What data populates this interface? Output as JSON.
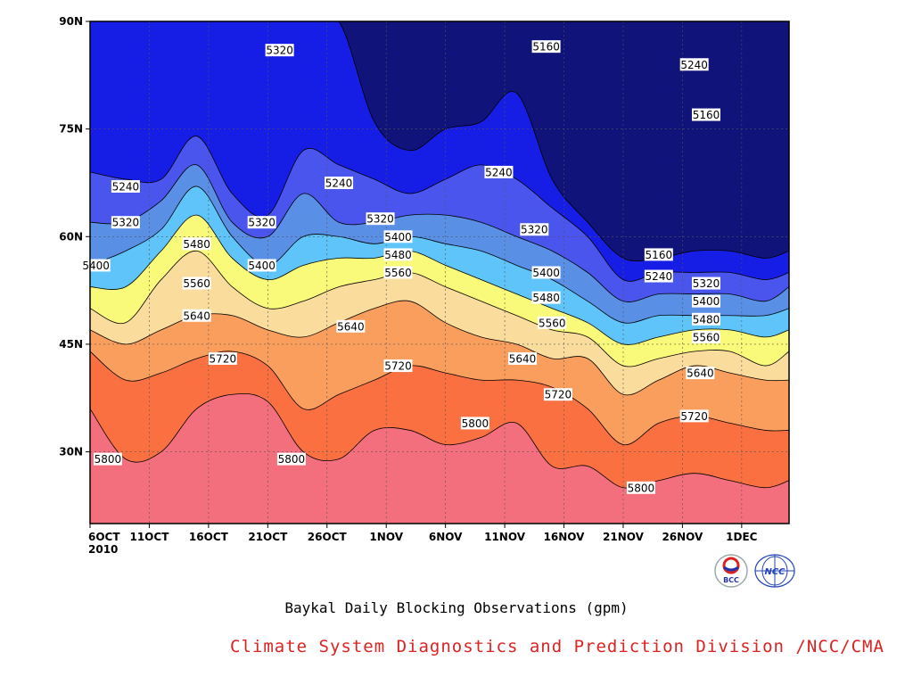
{
  "chart_data": {
    "type": "contour",
    "title": "",
    "caption": "Baykal Daily Blocking Observations (gpm)",
    "x_ticks": [
      "6OCT",
      "11OCT",
      "16OCT",
      "21OCT",
      "26OCT",
      "1NOV",
      "6NOV",
      "11NOV",
      "16NOV",
      "21NOV",
      "26NOV",
      "1DEC"
    ],
    "x_year": "2010",
    "y_ticks": [
      "30N",
      "45N",
      "60N",
      "75N",
      "90N"
    ],
    "x_range_days": [
      0,
      59
    ],
    "y_range_deg": [
      20,
      90
    ],
    "grid": true,
    "levels": [
      5160,
      5240,
      5320,
      5400,
      5480,
      5560,
      5640,
      5720,
      5800
    ],
    "fill_colors": [
      "#0f137a",
      "#161ee6",
      "#4a55ee",
      "#5a8fe6",
      "#5ec4fa",
      "#fafa7a",
      "#fadc9c",
      "#fa9e5e",
      "#fa7040",
      "#f46f7d"
    ],
    "days": [
      0,
      3,
      6,
      9,
      12,
      15,
      18,
      21,
      24,
      27,
      30,
      33,
      36,
      39,
      42,
      45,
      48,
      51,
      54,
      57,
      59
    ],
    "contours": [
      {
        "level": 5800,
        "lat": [
          36,
          29,
          30,
          36,
          38,
          37,
          30,
          29,
          33,
          33,
          31,
          32,
          34,
          28,
          28,
          25,
          26,
          27,
          26,
          25,
          26
        ]
      },
      {
        "level": 5720,
        "lat": [
          44,
          40,
          41,
          43,
          44,
          42,
          36,
          38,
          40,
          42,
          41,
          40,
          40,
          39,
          36,
          31,
          34,
          35,
          34,
          33,
          33
        ]
      },
      {
        "level": 5640,
        "lat": [
          47,
          45,
          47,
          49,
          49,
          47,
          46,
          48,
          50,
          51,
          48,
          46,
          45,
          43,
          43,
          38,
          40,
          42,
          41,
          40,
          40
        ]
      },
      {
        "level": 5560,
        "lat": [
          50,
          48,
          54,
          58,
          53,
          50,
          51,
          53,
          54,
          55,
          53,
          51,
          49,
          47,
          46,
          42,
          43,
          44,
          44,
          42,
          44
        ]
      },
      {
        "level": 5480,
        "lat": [
          53,
          53,
          58,
          63,
          57,
          54,
          56,
          57,
          57,
          58,
          56,
          54,
          52,
          50,
          48,
          45,
          46,
          47,
          47,
          46,
          47
        ]
      },
      {
        "level": 5400,
        "lat": [
          56,
          58,
          61,
          67,
          60,
          56,
          60,
          60,
          59,
          60,
          59,
          58,
          56,
          54,
          51,
          48,
          49,
          49,
          49,
          49,
          50
        ]
      },
      {
        "level": 5320,
        "lat": [
          62,
          62,
          65,
          70,
          62,
          60,
          66,
          62,
          62,
          63,
          63,
          62,
          60,
          58,
          55,
          51,
          52,
          52,
          52,
          51,
          53
        ]
      },
      {
        "level": 5240,
        "lat": [
          69,
          68,
          68,
          74,
          66,
          63,
          72,
          70,
          68,
          66,
          68,
          70,
          68,
          64,
          60,
          54,
          55,
          55,
          55,
          54,
          55
        ]
      },
      {
        "level": 5160,
        "lat": [
          90,
          90,
          90,
          90,
          90,
          90,
          90,
          90,
          76,
          72,
          75,
          76,
          80,
          68,
          62,
          57,
          57,
          58,
          58,
          57,
          58
        ]
      }
    ],
    "labels": [
      {
        "text": "5800",
        "day": 1.5,
        "lat": 29
      },
      {
        "text": "5800",
        "day": 17,
        "lat": 29
      },
      {
        "text": "5800",
        "day": 32.5,
        "lat": 34
      },
      {
        "text": "5800",
        "day": 46.5,
        "lat": 25
      },
      {
        "text": "5720",
        "day": 11.2,
        "lat": 43
      },
      {
        "text": "5720",
        "day": 26,
        "lat": 42
      },
      {
        "text": "5720",
        "day": 39.5,
        "lat": 38
      },
      {
        "text": "5720",
        "day": 51,
        "lat": 35
      },
      {
        "text": "5640",
        "day": 9,
        "lat": 49
      },
      {
        "text": "5640",
        "day": 22,
        "lat": 47.5
      },
      {
        "text": "5640",
        "day": 36.5,
        "lat": 43
      },
      {
        "text": "5640",
        "day": 51.5,
        "lat": 41
      },
      {
        "text": "5560",
        "day": 9,
        "lat": 53.5
      },
      {
        "text": "5560",
        "day": 26,
        "lat": 55
      },
      {
        "text": "5560",
        "day": 39,
        "lat": 48
      },
      {
        "text": "5560",
        "day": 52,
        "lat": 46
      },
      {
        "text": "5480",
        "day": 9,
        "lat": 59
      },
      {
        "text": "5480",
        "day": 26,
        "lat": 57.5
      },
      {
        "text": "5480",
        "day": 38.5,
        "lat": 51.5
      },
      {
        "text": "5480",
        "day": 52,
        "lat": 48.5
      },
      {
        "text": "5400",
        "day": 0.5,
        "lat": 56
      },
      {
        "text": "5400",
        "day": 14.5,
        "lat": 56
      },
      {
        "text": "5400",
        "day": 26,
        "lat": 60
      },
      {
        "text": "5400",
        "day": 38.5,
        "lat": 55
      },
      {
        "text": "5400",
        "day": 52,
        "lat": 51
      },
      {
        "text": "5320",
        "day": 3,
        "lat": 62
      },
      {
        "text": "5320",
        "day": 14.5,
        "lat": 62
      },
      {
        "text": "5320",
        "day": 16,
        "lat": 86
      },
      {
        "text": "5320",
        "day": 24.5,
        "lat": 62.5
      },
      {
        "text": "5320",
        "day": 37.5,
        "lat": 61
      },
      {
        "text": "5320",
        "day": 52,
        "lat": 53.5
      },
      {
        "text": "5240",
        "day": 3,
        "lat": 67
      },
      {
        "text": "5240",
        "day": 21,
        "lat": 67.5
      },
      {
        "text": "5240",
        "day": 34.5,
        "lat": 69
      },
      {
        "text": "5240",
        "day": 51,
        "lat": 84
      },
      {
        "text": "5240",
        "day": 48,
        "lat": 54.5
      },
      {
        "text": "5160",
        "day": 38.5,
        "lat": 86.5
      },
      {
        "text": "5160",
        "day": 52,
        "lat": 77
      },
      {
        "text": "5160",
        "day": 48,
        "lat": 57.5
      }
    ]
  },
  "credit": {
    "text": "Climate System Diagnostics and Prediction Division /NCC/CMA",
    "color": "#dd2222"
  },
  "logos": {
    "bcc_label": "BCC",
    "ncc_label": "NCC"
  }
}
